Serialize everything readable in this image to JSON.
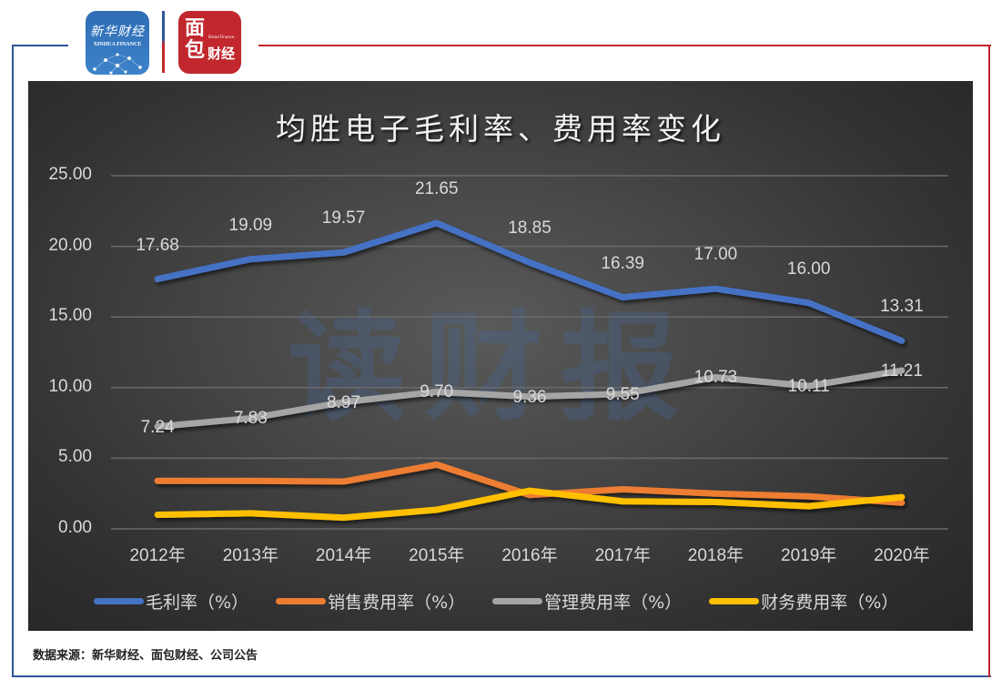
{
  "logos": {
    "xinhua_cn": "新华财经",
    "xinhua_en": "XINHUA FINANCE",
    "mianbao_big": "面包",
    "mianbao_small": "财经",
    "mianbao_tiny": "Bread Finance"
  },
  "watermark": "读财报",
  "source": "数据来源：新华财经、面包财经、公司公告",
  "colors": {
    "gross_margin": "#4472c4",
    "selling": "#ed7d31",
    "admin": "#a5a5a5",
    "finance": "#ffc000",
    "frame_blue": "#2f5597",
    "frame_red": "#c0272d"
  },
  "chart_data": {
    "type": "line",
    "title": "均胜电子毛利率、费用率变化",
    "xlabel": "",
    "ylabel": "",
    "ylim": [
      0,
      25
    ],
    "yticks": [
      "25.00",
      "20.00",
      "15.00",
      "10.00",
      "5.00",
      "0.00"
    ],
    "grid": true,
    "legend_position": "bottom",
    "categories": [
      "2012年",
      "2013年",
      "2014年",
      "2015年",
      "2016年",
      "2017年",
      "2018年",
      "2019年",
      "2020年"
    ],
    "series": [
      {
        "name": "毛利率（%）",
        "values": [
          17.68,
          19.09,
          19.57,
          21.65,
          18.85,
          16.39,
          17.0,
          16.0,
          13.31
        ],
        "labels": [
          "17.68",
          "19.09",
          "19.57",
          "21.65",
          "18.85",
          "16.39",
          "17.00",
          "16.00",
          "13.31"
        ]
      },
      {
        "name": "销售费用率（%）",
        "values": [
          3.4,
          3.4,
          3.35,
          4.55,
          2.4,
          2.8,
          2.5,
          2.3,
          1.85
        ]
      },
      {
        "name": "管理费用率（%）",
        "values": [
          7.24,
          7.83,
          8.97,
          9.7,
          9.36,
          9.55,
          10.73,
          10.11,
          11.21
        ],
        "labels": [
          "7.24",
          "7.83",
          "8.97",
          "9.70",
          "9.36",
          "9.55",
          "10.73",
          "10.11",
          "11.21"
        ]
      },
      {
        "name": "财务费用率（%）",
        "values": [
          1.0,
          1.1,
          0.8,
          1.35,
          2.7,
          1.95,
          1.9,
          1.6,
          2.25
        ]
      }
    ]
  }
}
